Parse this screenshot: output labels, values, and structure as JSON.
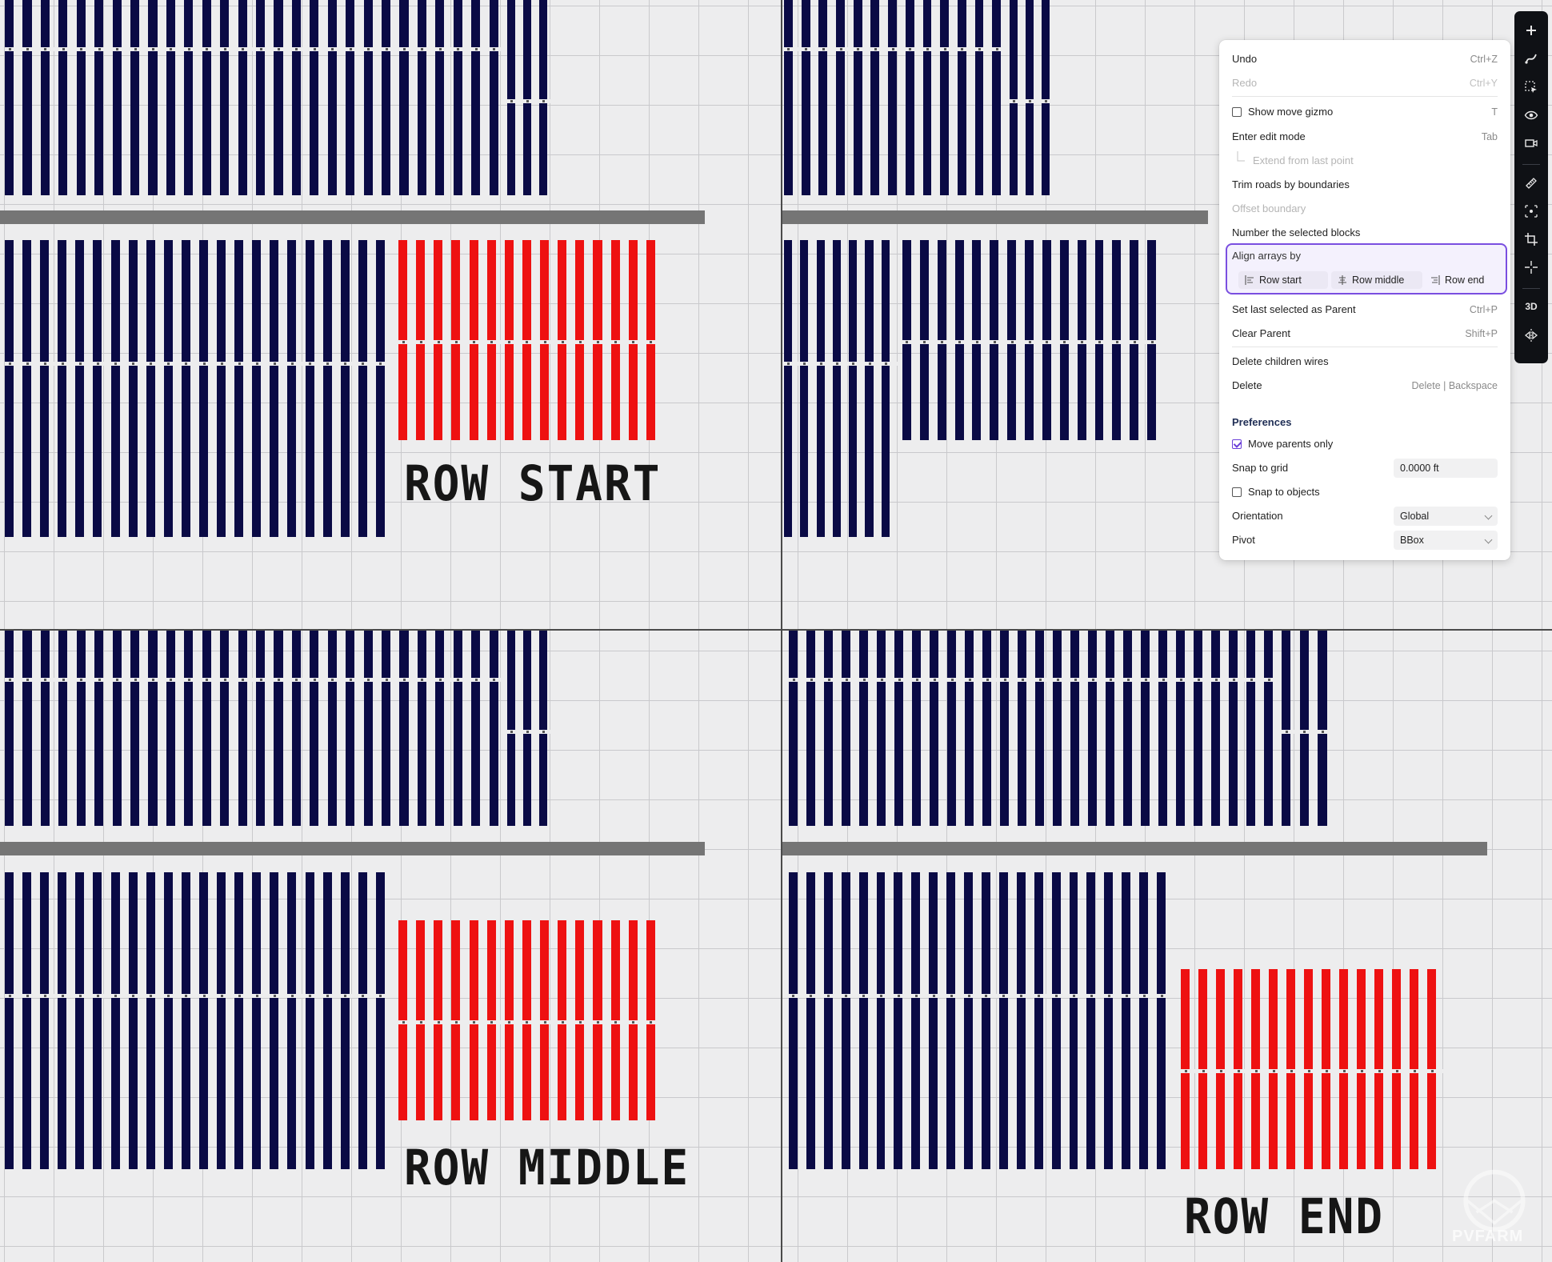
{
  "captions": {
    "row_start": "ROW START",
    "row_middle": "ROW MIDDLE",
    "row_end": "ROW END"
  },
  "colors": {
    "background": "#ededee",
    "grid": "#c9c9cc",
    "array_fixed": "#0a0a45",
    "array_selected": "#ee1111",
    "road": "#757575",
    "accent": "#7a4fe0"
  },
  "toolbar": {
    "icons": [
      "plus-icon",
      "pen-route-icon",
      "select-box-icon",
      "eye-icon",
      "camera-icon",
      "ruler-icon",
      "snap-point-icon",
      "crop-icon",
      "crosshair-icon",
      "3d-toggle",
      "mirror-icon"
    ],
    "three_d_label": "3D"
  },
  "menu": {
    "undo": {
      "label": "Undo",
      "shortcut": "Ctrl+Z"
    },
    "redo": {
      "label": "Redo",
      "shortcut": "Ctrl+Y"
    },
    "show_move_gizmo": {
      "label": "Show move gizmo",
      "shortcut": "T",
      "checked": false
    },
    "enter_edit_mode": {
      "label": "Enter edit mode",
      "shortcut": "Tab"
    },
    "extend_from_last_point": {
      "label": "Extend from last point"
    },
    "trim_roads": {
      "label": "Trim roads by boundaries"
    },
    "offset_boundary": {
      "label": "Offset boundary"
    },
    "number_blocks": {
      "label": "Number the selected blocks"
    },
    "align_arrays": {
      "label": "Align arrays by",
      "options": [
        "Row start",
        "Row middle",
        "Row end"
      ],
      "selected": [
        "Row start",
        "Row middle"
      ]
    },
    "set_parent": {
      "label": "Set last selected as Parent",
      "shortcut": "Ctrl+P"
    },
    "clear_parent": {
      "label": "Clear Parent",
      "shortcut": "Shift+P"
    },
    "delete_children_wires": {
      "label": "Delete children wires"
    },
    "delete": {
      "label": "Delete",
      "shortcut": "Delete | Backspace"
    },
    "preferences": {
      "title": "Preferences",
      "move_parents_only": {
        "label": "Move parents only",
        "checked": true
      },
      "snap_to_grid": {
        "label": "Snap to grid",
        "value": "0.0000 ft"
      },
      "snap_to_objects": {
        "label": "Snap to objects",
        "checked": false
      },
      "orientation": {
        "label": "Orientation",
        "value": "Global"
      },
      "pivot": {
        "label": "Pivot",
        "value": "BBox"
      }
    }
  },
  "watermark": "PVFARM"
}
